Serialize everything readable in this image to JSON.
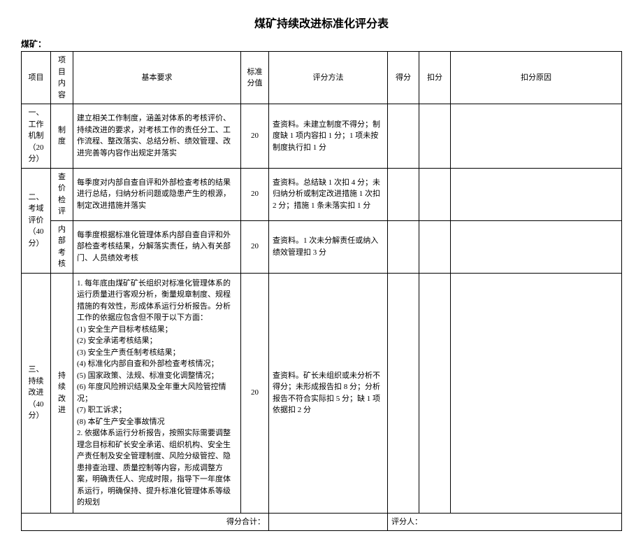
{
  "title": "煤矿持续改进标准化评分表",
  "subtitle": "煤矿：",
  "headers": {
    "project": "项目",
    "content": "项目内容",
    "requirement": "基本要求",
    "standard_score": "标准分值",
    "method": "评分方法",
    "score": "得分",
    "deduct": "扣分",
    "reason": "扣分原因"
  },
  "rows": [
    {
      "project": "一、工作机制（20 分）",
      "content": "制度",
      "requirement": "建立相关工作制度，涵盖对体系的考核评价、持续改进的要求，对考核工作的责任分工、工作流程、整改落实、总结分析、绩效管理、改进完善等内容作出规定并落实",
      "standard_score": "20",
      "method": "查资料。未建立制度不得分；制度缺 1 项内容扣 1 分；1 项未按制度执行扣 1 分",
      "score": "",
      "deduct": "",
      "reason": ""
    },
    {
      "project": "二、考域评价（40 分）",
      "content": "查价检评",
      "requirement": "每季度对内部自查自评和外部检查考核的结果进行总结，归纳分析问题或隐患产生的根源，制定改进措施并落实",
      "standard_score": "20",
      "method": "查资料。总结缺 1 次扣 4 分；未归纳分析或制定改进措施 1 次扣 2 分；措施 1 条未落实扣 1 分",
      "score": "",
      "deduct": "",
      "reason": ""
    },
    {
      "content": "内 部考核",
      "requirement": "每季度根据标准化管理体系内部自查自评和外部检查考核结果，分解落实责任，纳入有关部门、人员绩效考核",
      "standard_score": "20",
      "method": "查资料。1 次未分解责任或纳入绩效管理扣 3 分",
      "score": "",
      "deduct": "",
      "reason": ""
    },
    {
      "project": "三、持续改进（40 分）",
      "content": "持 续改进",
      "requirement": "1. 每年底由煤矿矿长组织对标准化管理体系的运行质量进行客观分析，衡量规章制度、规程措施的有效性，形成体系运行分析报告。分析工作的依据应包含但不限于以下方面：\n(1) 安全生产目标考核结果；\n(2) 安全承诺考核结果；\n(3) 安全生产责任制考核结果；\n(4) 标准化内部自查和外部检查考核情况；\n(5) 国家政策、法规、标准变化调整情况；\n(6) 年度风险辨识结果及全年重大风险管控情况；\n(7) 职工诉求；\n(8) 本矿生产安全事故情况\n2. 依据体系运行分析报告，按照实际需要调整理念目标和矿长安全承诺、组织机构、安全生产责任制及安全管理制度、风险分级管控、隐患排查治理、质量控制等内容，形成调整方案，明确责任人、完成时限，指导下一年度体系运行，明确保持、提升标准化管理体系等级的规划",
      "standard_score": "20",
      "method": "查资料。矿长未组织或未分析不得分；未形成报告扣 8 分；分析报告不符合实际扣 5 分；缺 1 项依据扣 2 分",
      "score": "",
      "deduct": "",
      "reason": ""
    }
  ],
  "summary": {
    "total_label": "得分合计：",
    "scorer_label": "评分人："
  }
}
